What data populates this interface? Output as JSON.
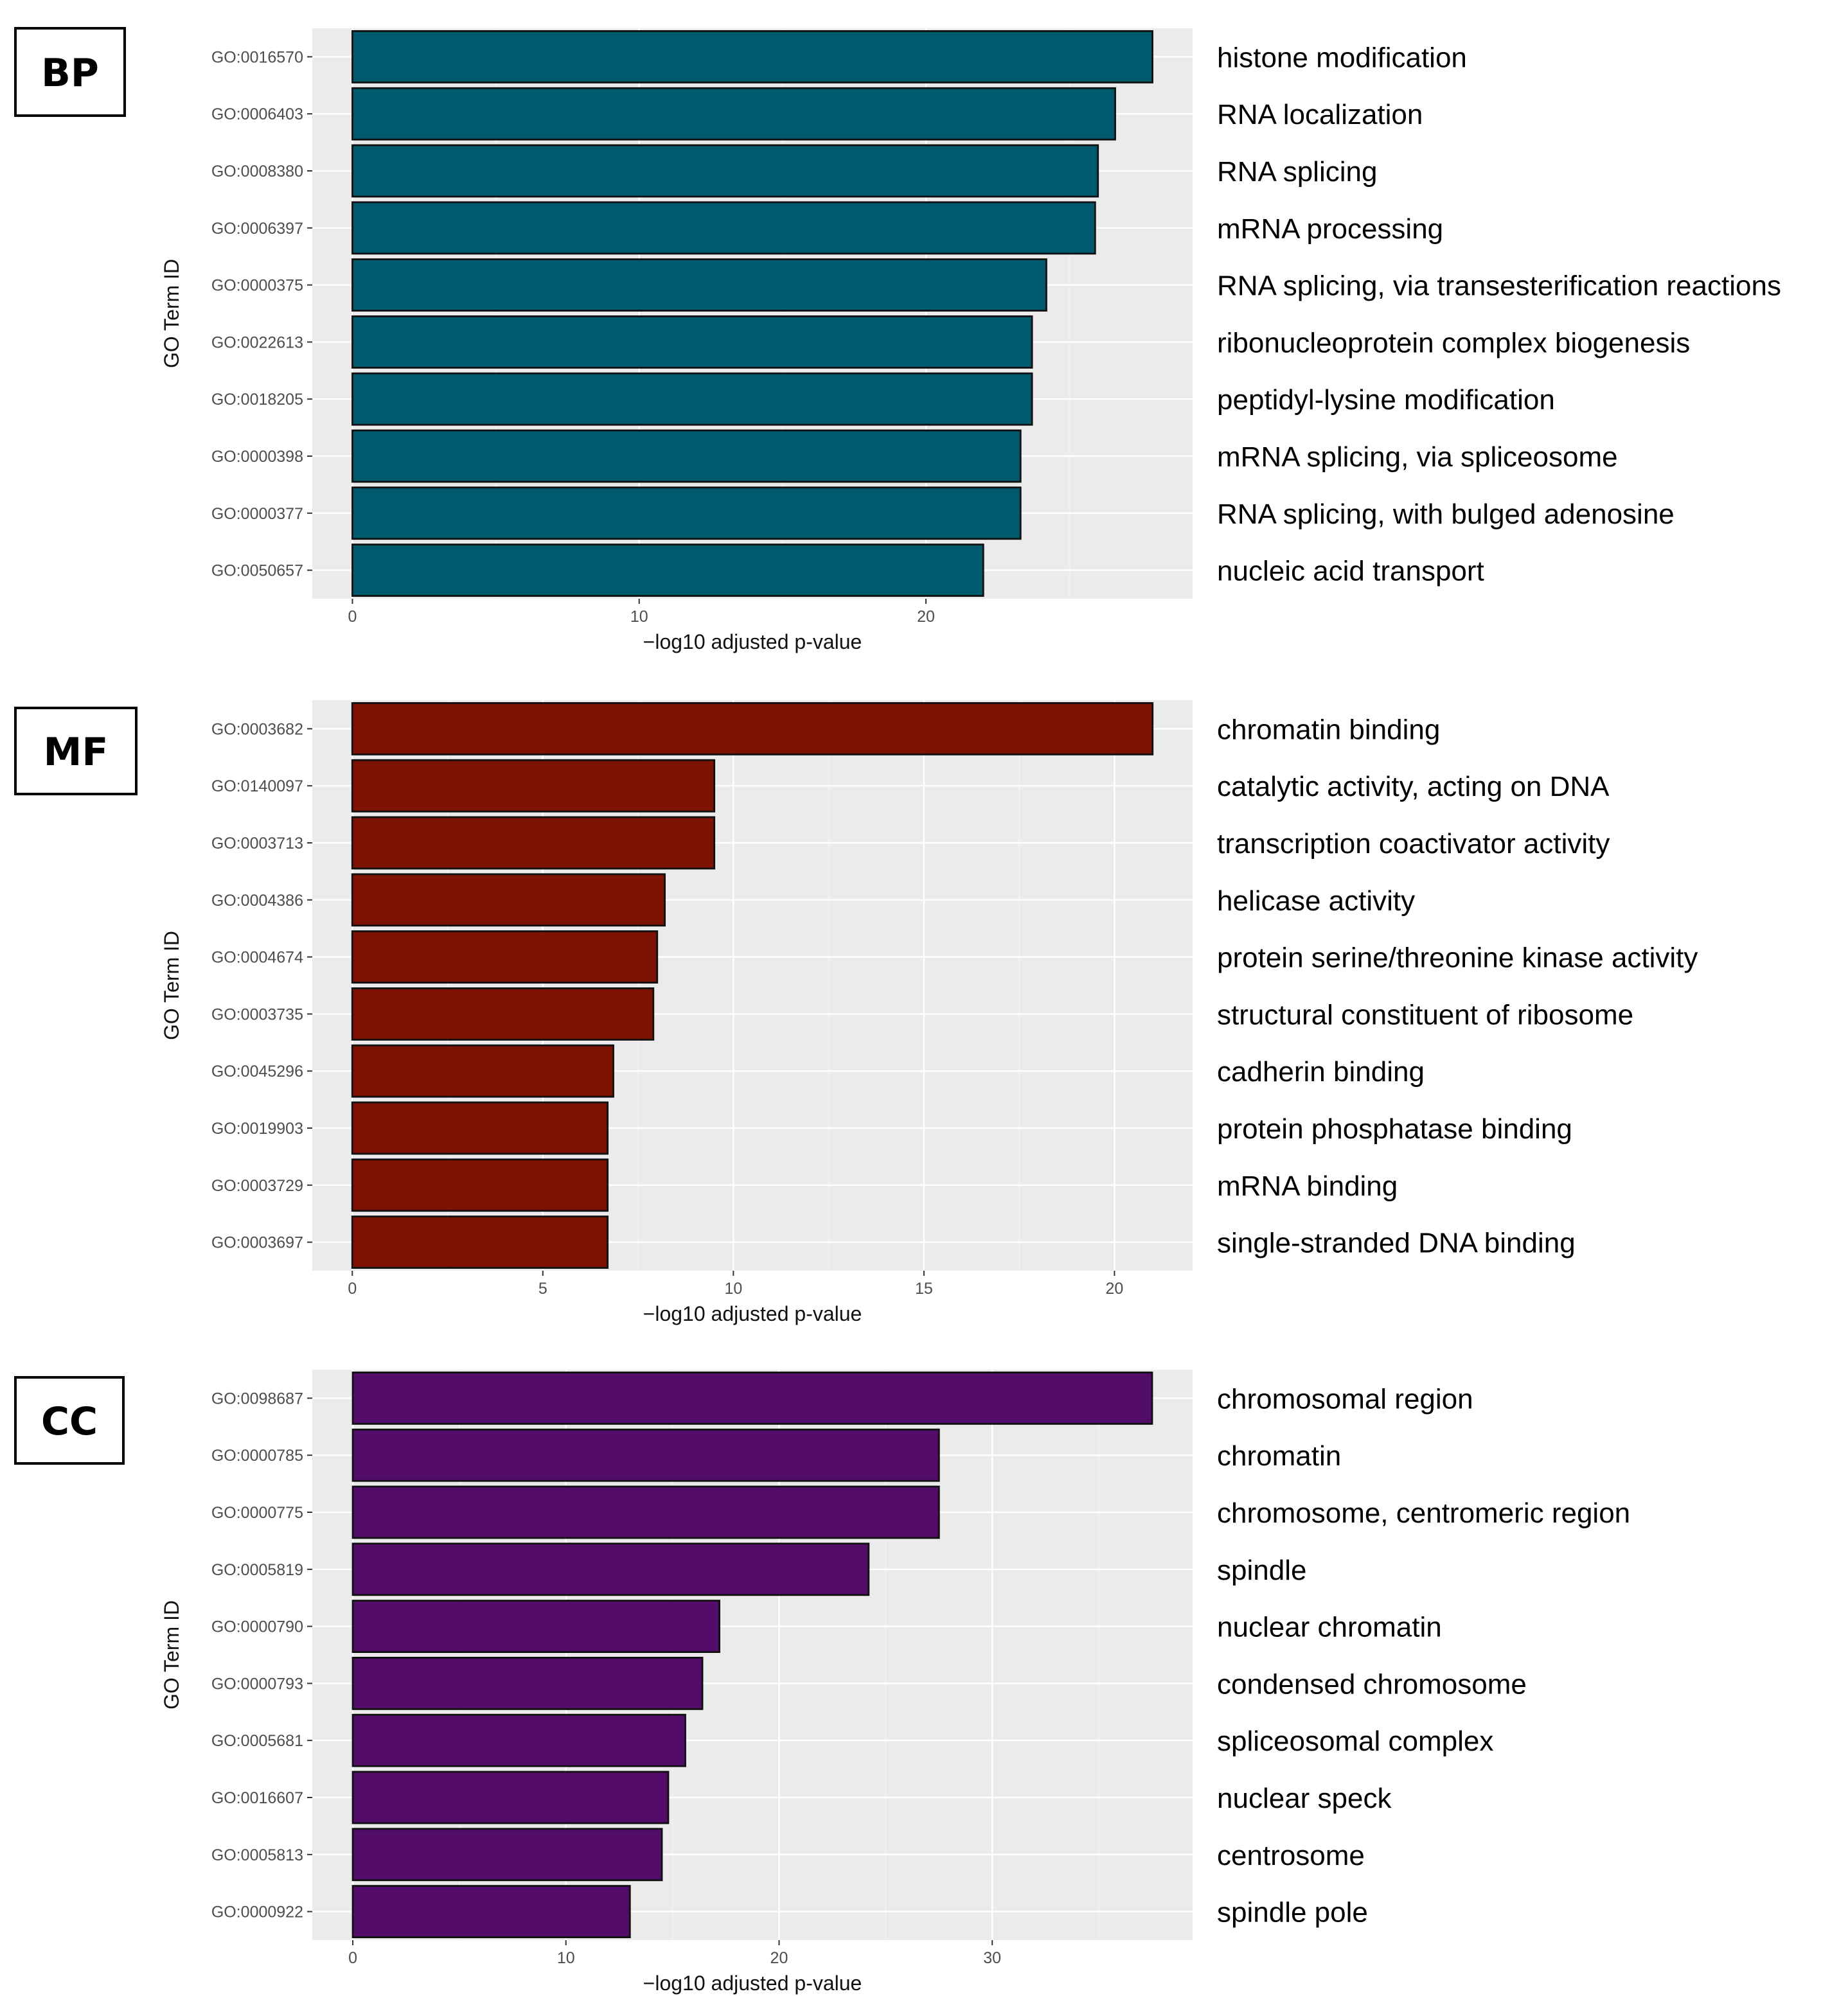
{
  "chart_data": [
    {
      "type": "bar",
      "orientation": "horizontal",
      "panel_label": "BP",
      "color": "#005a6e",
      "xlabel": "−log10 adjusted p-value",
      "ylabel": "GO Term ID",
      "xlim": [
        -1.4,
        29.3
      ],
      "xticks": [
        0,
        10,
        20
      ],
      "grid": true,
      "categories": [
        "GO:0016570",
        "GO:0006403",
        "GO:0008380",
        "GO:0006397",
        "GO:0000375",
        "GO:0022613",
        "GO:0018205",
        "GO:0000398",
        "GO:0000377",
        "GO:0050657"
      ],
      "descriptions": [
        "histone modification",
        "RNA localization",
        "RNA splicing",
        "mRNA processing",
        "RNA splicing, via transesterification reactions",
        "ribonucleoprotein complex biogenesis",
        "peptidyl-lysine modification",
        "mRNA splicing, via spliceosome",
        "RNA splicing, with bulged adenosine",
        "nucleic acid transport"
      ],
      "values": [
        27.9,
        26.6,
        26.0,
        25.9,
        24.2,
        23.7,
        23.7,
        23.3,
        23.3,
        22.0
      ]
    },
    {
      "type": "bar",
      "orientation": "horizontal",
      "panel_label": "MF",
      "color": "#7d1202",
      "xlabel": "−log10 adjusted p-value",
      "ylabel": "GO Term ID",
      "xlim": [
        -1.05,
        22.05
      ],
      "xticks": [
        0,
        5,
        10,
        15,
        20
      ],
      "grid": true,
      "categories": [
        "GO:0003682",
        "GO:0140097",
        "GO:0003713",
        "GO:0004386",
        "GO:0004674",
        "GO:0003735",
        "GO:0045296",
        "GO:0019903",
        "GO:0003729",
        "GO:0003697"
      ],
      "descriptions": [
        "chromatin binding",
        "catalytic activity, acting on DNA",
        "transcription coactivator activity",
        "helicase activity",
        "protein serine/threonine kinase activity",
        "structural constituent of ribosome",
        "cadherin binding",
        "protein phosphatase binding",
        "mRNA binding",
        "single-stranded DNA binding"
      ],
      "values": [
        21.0,
        9.5,
        9.5,
        8.2,
        8.0,
        7.9,
        6.85,
        6.7,
        6.7,
        6.7
      ]
    },
    {
      "type": "bar",
      "orientation": "horizontal",
      "panel_label": "CC",
      "color": "#530c6a",
      "xlabel": "−log10 adjusted p-value",
      "ylabel": "GO Term ID",
      "xlim": [
        -1.9,
        39.4
      ],
      "xticks": [
        0,
        10,
        20,
        30
      ],
      "grid": true,
      "categories": [
        "GO:0098687",
        "GO:0000785",
        "GO:0000775",
        "GO:0005819",
        "GO:0000790",
        "GO:0000793",
        "GO:0005681",
        "GO:0016607",
        "GO:0005813",
        "GO:0000922"
      ],
      "descriptions": [
        "chromosomal region",
        "chromatin",
        "chromosome, centromeric region",
        "spindle",
        "nuclear chromatin",
        "condensed chromosome",
        "spliceosomal complex",
        "nuclear speck",
        "centrosome",
        "spindle pole"
      ],
      "values": [
        37.5,
        27.5,
        27.5,
        24.2,
        17.2,
        16.4,
        15.6,
        14.8,
        14.5,
        13.0
      ]
    }
  ]
}
